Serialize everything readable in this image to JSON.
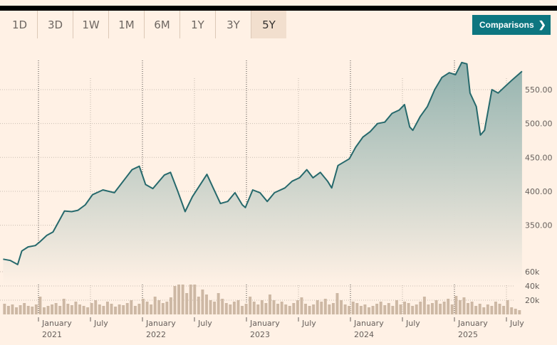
{
  "tabs": [
    "1D",
    "3D",
    "1W",
    "1M",
    "6M",
    "1Y",
    "3Y",
    "5Y"
  ],
  "active_tab": "5Y",
  "comparisons_label": "Comparisons",
  "colors": {
    "line": "#26696c",
    "fill_top": "#8fb0ac",
    "fill_bottom": "#fff1e5",
    "volume": "#cdb8a4",
    "button": "#0d7680"
  },
  "chart_data": {
    "type": "area",
    "title": "",
    "price": {
      "yticks": [
        350,
        400,
        450,
        500,
        550
      ],
      "ytick_labels": [
        "350.00",
        "400.00",
        "450.00",
        "500.00",
        "550.00"
      ],
      "x": [
        2020.66,
        2020.73,
        2020.8,
        2020.84,
        2020.9,
        2020.97,
        2021.01,
        2021.08,
        2021.14,
        2021.25,
        2021.32,
        2021.38,
        2021.45,
        2021.52,
        2021.62,
        2021.73,
        2021.83,
        2021.9,
        2021.97,
        2022.03,
        2022.1,
        2022.21,
        2022.27,
        2022.34,
        2022.41,
        2022.48,
        2022.62,
        2022.68,
        2022.75,
        2022.82,
        2022.89,
        2022.96,
        2022.99,
        2023.06,
        2023.13,
        2023.2,
        2023.27,
        2023.37,
        2023.44,
        2023.51,
        2023.58,
        2023.64,
        2023.71,
        2023.78,
        2023.82,
        2023.88,
        2023.99,
        2024.05,
        2024.12,
        2024.19,
        2024.26,
        2024.33,
        2024.4,
        2024.47,
        2024.52,
        2024.57,
        2024.6,
        2024.67,
        2024.74,
        2024.81,
        2024.88,
        2024.95,
        2025.01,
        2025.07,
        2025.12,
        2025.15,
        2025.21,
        2025.25,
        2025.29,
        2025.36,
        2025.42,
        2025.49,
        2025.56,
        2025.65
      ],
      "y": [
        300,
        298,
        292,
        312,
        318,
        320,
        325,
        335,
        340,
        371,
        370,
        372,
        380,
        395,
        402,
        398,
        418,
        432,
        437,
        410,
        404,
        424,
        428,
        400,
        370,
        392,
        425,
        405,
        382,
        385,
        398,
        380,
        376,
        402,
        398,
        385,
        398,
        405,
        415,
        420,
        432,
        420,
        428,
        415,
        405,
        438,
        448,
        465,
        480,
        488,
        500,
        502,
        515,
        520,
        528,
        495,
        490,
        510,
        525,
        550,
        568,
        575,
        572,
        590,
        588,
        545,
        525,
        483,
        490,
        550,
        545,
        555,
        565,
        577
      ]
    },
    "volume": {
      "yticks": [
        20,
        40,
        60
      ],
      "ytick_labels": [
        "20k",
        "40k",
        "60k"
      ],
      "start": 2020.66,
      "end": 2025.65,
      "values": [
        15,
        12,
        14,
        10,
        13,
        16,
        12,
        11,
        14,
        25,
        10,
        12,
        14,
        16,
        12,
        22,
        15,
        13,
        18,
        14,
        12,
        10,
        16,
        20,
        14,
        12,
        18,
        15,
        11,
        14,
        13,
        16,
        20,
        12,
        15,
        22,
        18,
        14,
        25,
        20,
        16,
        18,
        24,
        40,
        48,
        55,
        30,
        70,
        45,
        25,
        35,
        28,
        20,
        18,
        30,
        22,
        16,
        14,
        18,
        20,
        12,
        15,
        25,
        18,
        14,
        20,
        16,
        28,
        20,
        15,
        18,
        14,
        12,
        16,
        20,
        24,
        15,
        12,
        14,
        20,
        18,
        22,
        14,
        16,
        30,
        20,
        14,
        12,
        18,
        16,
        12,
        14,
        10,
        12,
        15,
        18,
        13,
        16,
        12,
        20,
        14,
        18,
        16,
        12,
        14,
        18,
        25,
        14,
        16,
        20,
        15,
        18,
        22,
        14,
        26,
        20,
        24,
        16,
        18,
        12,
        15,
        10,
        14,
        12,
        18,
        15,
        12,
        20,
        10,
        8,
        6
      ]
    },
    "xticks": [
      {
        "t": 2021.0,
        "label": "January",
        "year": "2021",
        "major": true
      },
      {
        "t": 2021.5,
        "label": "July",
        "major": false
      },
      {
        "t": 2022.0,
        "label": "January",
        "year": "2022",
        "major": true
      },
      {
        "t": 2022.5,
        "label": "July",
        "major": false
      },
      {
        "t": 2023.0,
        "label": "January",
        "year": "2023",
        "major": true
      },
      {
        "t": 2023.5,
        "label": "July",
        "major": false
      },
      {
        "t": 2024.0,
        "label": "January",
        "year": "2024",
        "major": true
      },
      {
        "t": 2024.5,
        "label": "July",
        "major": false
      },
      {
        "t": 2025.0,
        "label": "January",
        "year": "2025",
        "major": true
      },
      {
        "t": 2025.5,
        "label": "July",
        "major": false
      }
    ]
  }
}
